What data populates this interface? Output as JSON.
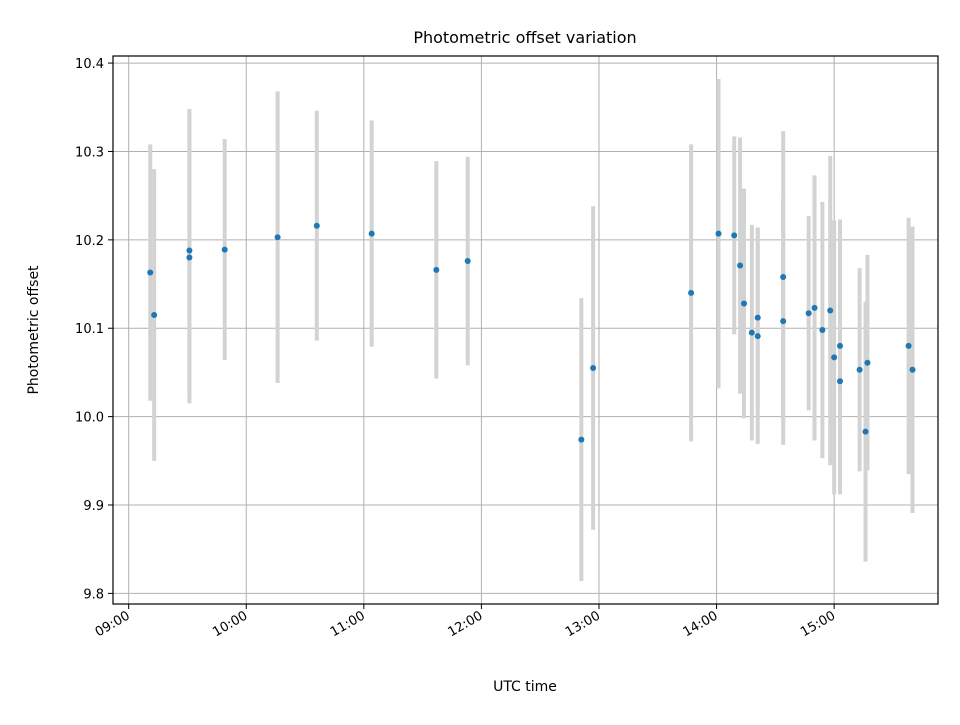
{
  "chart_data": {
    "type": "scatter",
    "title": "Photometric offset variation",
    "xlabel": "UTC time",
    "ylabel": "Photometric offset",
    "x_tick_labels": [
      "09:00",
      "10:00",
      "11:00",
      "12:00",
      "13:00",
      "14:00",
      "15:00"
    ],
    "y_tick_labels": [
      "9.8",
      "9.9",
      "10.0",
      "10.1",
      "10.2",
      "10.3",
      "10.4"
    ],
    "x_ticks": [
      "09:00",
      "10:00",
      "11:00",
      "12:00",
      "13:00",
      "14:00",
      "15:00"
    ],
    "y_ticks": [
      9.8,
      9.9,
      10.0,
      10.1,
      10.2,
      10.3,
      10.4
    ],
    "xlim": [
      "08:52",
      "15:53"
    ],
    "ylim": [
      9.788,
      10.408
    ],
    "grid": true,
    "colors": {
      "marker": "#1f77b4",
      "errorbar": "#d3d3d3",
      "grid": "#b0b0b0"
    },
    "points": [
      {
        "x": "09:11",
        "y": 10.163,
        "err": 0.145
      },
      {
        "x": "09:13",
        "y": 10.115,
        "err": 0.165
      },
      {
        "x": "09:31",
        "y": 10.188,
        "err": 0.16
      },
      {
        "x": "09:31",
        "y": 10.18,
        "err": 0.165
      },
      {
        "x": "09:49",
        "y": 10.189,
        "err": 0.125
      },
      {
        "x": "10:16",
        "y": 10.203,
        "err": 0.165
      },
      {
        "x": "10:36",
        "y": 10.216,
        "err": 0.13
      },
      {
        "x": "11:04",
        "y": 10.207,
        "err": 0.128
      },
      {
        "x": "11:37",
        "y": 10.166,
        "err": 0.123
      },
      {
        "x": "11:53",
        "y": 10.176,
        "err": 0.118
      },
      {
        "x": "12:51",
        "y": 9.974,
        "err": 0.16
      },
      {
        "x": "12:57",
        "y": 10.055,
        "err": 0.183
      },
      {
        "x": "13:47",
        "y": 10.14,
        "err": 0.168
      },
      {
        "x": "14:01",
        "y": 10.207,
        "err": 0.175
      },
      {
        "x": "14:09",
        "y": 10.205,
        "err": 0.112
      },
      {
        "x": "14:12",
        "y": 10.171,
        "err": 0.145
      },
      {
        "x": "14:14",
        "y": 10.128,
        "err": 0.13
      },
      {
        "x": "14:18",
        "y": 10.095,
        "err": 0.122
      },
      {
        "x": "14:21",
        "y": 10.112,
        "err": 0.102
      },
      {
        "x": "14:21",
        "y": 10.091,
        "err": 0.122
      },
      {
        "x": "14:34",
        "y": 10.158,
        "err": 0.165
      },
      {
        "x": "14:34",
        "y": 10.108,
        "err": 0.14
      },
      {
        "x": "14:47",
        "y": 10.117,
        "err": 0.11
      },
      {
        "x": "14:50",
        "y": 10.123,
        "err": 0.15
      },
      {
        "x": "14:54",
        "y": 10.098,
        "err": 0.145
      },
      {
        "x": "14:58",
        "y": 10.12,
        "err": 0.175
      },
      {
        "x": "15:00",
        "y": 10.067,
        "err": 0.155
      },
      {
        "x": "15:03",
        "y": 10.04,
        "err": 0.128
      },
      {
        "x": "15:03",
        "y": 10.08,
        "err": 0.143
      },
      {
        "x": "15:13",
        "y": 10.053,
        "err": 0.115
      },
      {
        "x": "15:16",
        "y": 9.983,
        "err": 0.147
      },
      {
        "x": "15:17",
        "y": 10.061,
        "err": 0.122
      },
      {
        "x": "15:38",
        "y": 10.08,
        "err": 0.145
      },
      {
        "x": "15:40",
        "y": 10.053,
        "err": 0.162
      }
    ]
  }
}
